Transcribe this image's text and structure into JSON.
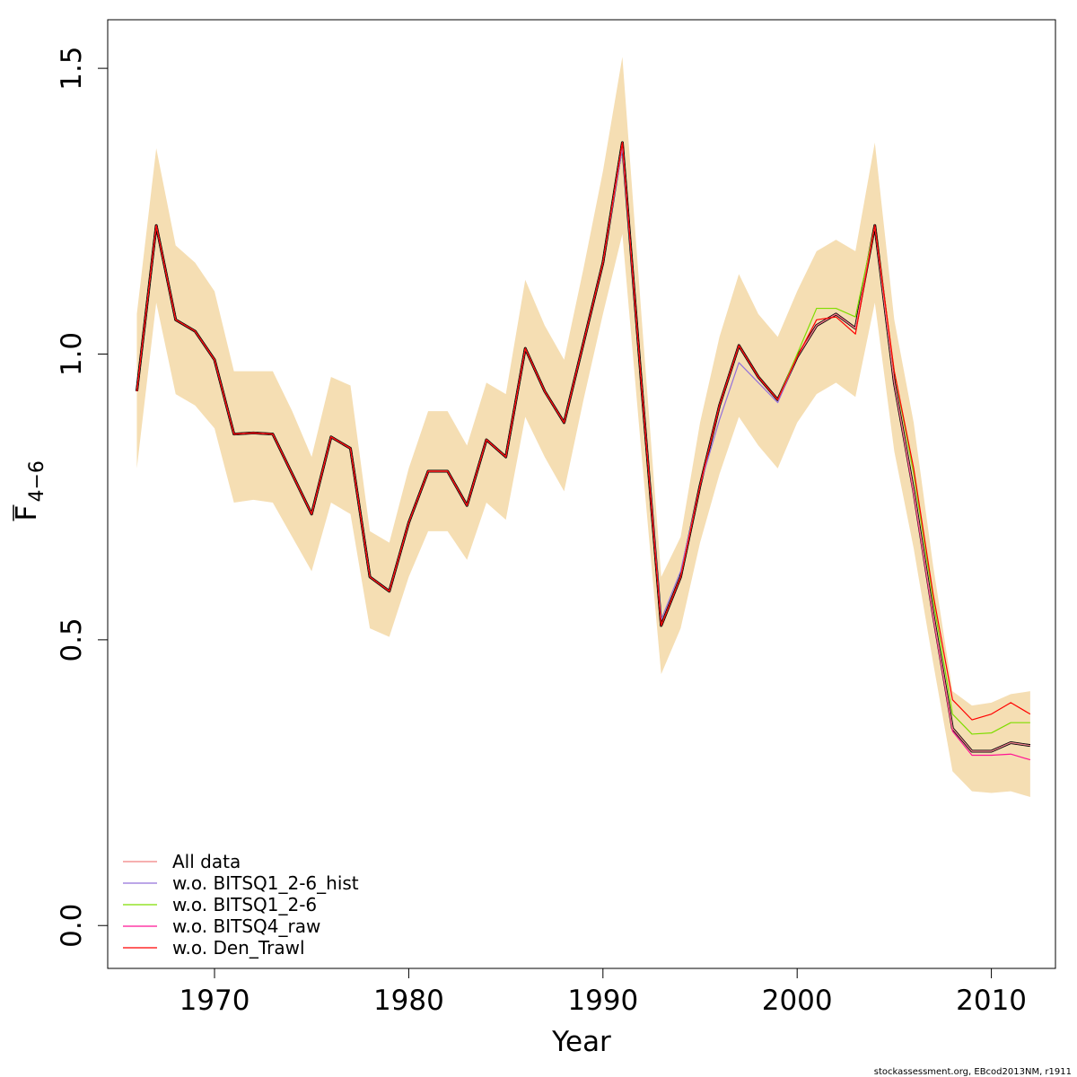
{
  "chart_data": {
    "type": "line",
    "xlabel": "Year",
    "ylabel": {
      "base": "F",
      "subscript": "4−6"
    },
    "xlim": [
      1964.5,
      2013.3
    ],
    "ylim": [
      -0.075,
      1.585
    ],
    "x_ticks": [
      1970,
      1980,
      1990,
      2000,
      2010
    ],
    "y_ticks": [
      0.0,
      0.5,
      1.0,
      1.5
    ],
    "y_tick_labels": [
      "0.0",
      "0.5",
      "1.0",
      "1.5"
    ],
    "grid": false,
    "legend_position": "bottom-left",
    "credit": "stockassessment.org, EBcod2013NM, r1911",
    "colors": {
      "band": "#F5DEB3",
      "main": "#000000",
      "all_data": "#F08080",
      "bitsq1_hist": "#9370DB",
      "bitsq1": "#7FDD00",
      "bitsq4": "#FF1493",
      "den_trawl": "#FF0000"
    },
    "years": [
      1966,
      1967,
      1968,
      1969,
      1970,
      1971,
      1972,
      1973,
      1974,
      1975,
      1976,
      1977,
      1978,
      1979,
      1980,
      1981,
      1982,
      1983,
      1984,
      1985,
      1986,
      1987,
      1988,
      1989,
      1990,
      1991,
      1992,
      1993,
      1994,
      1995,
      1996,
      1997,
      1998,
      1999,
      2000,
      2001,
      2002,
      2003,
      2004,
      2005,
      2006,
      2007,
      2008,
      2009,
      2010,
      2011,
      2012
    ],
    "band_upper": [
      1.07,
      1.36,
      1.19,
      1.16,
      1.11,
      0.97,
      0.97,
      0.97,
      0.9,
      0.82,
      0.96,
      0.945,
      0.69,
      0.67,
      0.8,
      0.9,
      0.9,
      0.84,
      0.95,
      0.93,
      1.13,
      1.05,
      0.99,
      1.15,
      1.32,
      1.52,
      1.06,
      0.61,
      0.68,
      0.88,
      1.03,
      1.14,
      1.07,
      1.03,
      1.11,
      1.18,
      1.2,
      1.18,
      1.37,
      1.06,
      0.88,
      0.63,
      0.41,
      0.385,
      0.39,
      0.405,
      0.41
    ],
    "band_lower": [
      0.8,
      1.09,
      0.93,
      0.91,
      0.87,
      0.74,
      0.745,
      0.74,
      0.68,
      0.62,
      0.74,
      0.72,
      0.52,
      0.505,
      0.61,
      0.69,
      0.69,
      0.64,
      0.74,
      0.71,
      0.89,
      0.82,
      0.76,
      0.92,
      1.07,
      1.21,
      0.82,
      0.44,
      0.52,
      0.67,
      0.79,
      0.89,
      0.84,
      0.8,
      0.88,
      0.93,
      0.95,
      0.925,
      1.09,
      0.83,
      0.66,
      0.46,
      0.27,
      0.235,
      0.232,
      0.235,
      0.225
    ],
    "main_line": {
      "values": [
        0.935,
        1.225,
        1.06,
        1.04,
        0.99,
        0.86,
        0.862,
        0.86,
        0.79,
        0.72,
        0.855,
        0.835,
        0.61,
        0.585,
        0.705,
        0.795,
        0.795,
        0.735,
        0.85,
        0.82,
        1.01,
        0.935,
        0.88,
        1.02,
        1.16,
        1.37,
        0.94,
        0.525,
        0.61,
        0.77,
        0.91,
        1.015,
        0.96,
        0.92,
        0.995,
        1.05,
        1.07,
        1.045,
        1.225,
        0.95,
        0.76,
        0.545,
        0.345,
        0.305,
        0.305,
        0.32,
        0.315
      ]
    },
    "series": [
      {
        "name": "All data",
        "color_key": "all_data",
        "values": [
          0.935,
          1.225,
          1.06,
          1.04,
          0.99,
          0.86,
          0.862,
          0.86,
          0.79,
          0.72,
          0.855,
          0.835,
          0.61,
          0.585,
          0.705,
          0.795,
          0.795,
          0.735,
          0.85,
          0.82,
          1.01,
          0.935,
          0.88,
          1.02,
          1.16,
          1.37,
          0.94,
          0.525,
          0.61,
          0.77,
          0.91,
          1.015,
          0.96,
          0.92,
          0.995,
          1.05,
          1.07,
          1.045,
          1.225,
          0.95,
          0.76,
          0.545,
          0.345,
          0.305,
          0.305,
          0.32,
          0.315
        ]
      },
      {
        "name": "w.o. BITSQ1_2-6_hist",
        "color_key": "bitsq1_hist",
        "values": [
          0.935,
          1.225,
          1.06,
          1.04,
          0.99,
          0.86,
          0.862,
          0.86,
          0.79,
          0.72,
          0.855,
          0.835,
          0.61,
          0.585,
          0.705,
          0.795,
          0.795,
          0.735,
          0.85,
          0.82,
          1.01,
          0.935,
          0.88,
          1.02,
          1.16,
          1.36,
          0.94,
          0.535,
          0.62,
          0.77,
          0.885,
          0.985,
          0.95,
          0.915,
          0.995,
          1.05,
          1.07,
          1.045,
          1.225,
          0.95,
          0.76,
          0.545,
          0.345,
          0.305,
          0.305,
          0.32,
          0.315
        ]
      },
      {
        "name": "w.o. BITSQ1_2-6",
        "color_key": "bitsq1",
        "values": [
          0.935,
          1.225,
          1.06,
          1.04,
          0.99,
          0.86,
          0.862,
          0.86,
          0.79,
          0.72,
          0.855,
          0.835,
          0.61,
          0.585,
          0.705,
          0.795,
          0.795,
          0.735,
          0.85,
          0.82,
          1.01,
          0.935,
          0.88,
          1.02,
          1.16,
          1.37,
          0.94,
          0.525,
          0.61,
          0.77,
          0.91,
          1.015,
          0.96,
          0.92,
          1.0,
          1.08,
          1.08,
          1.065,
          1.225,
          0.97,
          0.79,
          0.57,
          0.37,
          0.335,
          0.337,
          0.355,
          0.355
        ]
      },
      {
        "name": "w.o. BITSQ4_raw",
        "color_key": "bitsq4",
        "values": [
          0.935,
          1.225,
          1.06,
          1.04,
          0.99,
          0.86,
          0.862,
          0.86,
          0.79,
          0.72,
          0.855,
          0.835,
          0.61,
          0.585,
          0.705,
          0.795,
          0.795,
          0.735,
          0.85,
          0.82,
          1.01,
          0.935,
          0.88,
          1.02,
          1.16,
          1.37,
          0.94,
          0.525,
          0.61,
          0.77,
          0.91,
          1.015,
          0.96,
          0.92,
          0.995,
          1.05,
          1.07,
          1.045,
          1.225,
          0.95,
          0.755,
          0.54,
          0.34,
          0.298,
          0.298,
          0.3,
          0.29
        ]
      },
      {
        "name": "w.o. Den_Trawl",
        "color_key": "den_trawl",
        "values": [
          0.935,
          1.225,
          1.06,
          1.04,
          0.99,
          0.86,
          0.862,
          0.86,
          0.79,
          0.72,
          0.855,
          0.835,
          0.61,
          0.585,
          0.705,
          0.795,
          0.795,
          0.735,
          0.85,
          0.82,
          1.01,
          0.935,
          0.88,
          1.02,
          1.16,
          1.37,
          0.94,
          0.525,
          0.61,
          0.77,
          0.91,
          1.015,
          0.96,
          0.92,
          0.995,
          1.06,
          1.065,
          1.035,
          1.225,
          0.97,
          0.8,
          0.58,
          0.395,
          0.36,
          0.37,
          0.39,
          0.37
        ]
      }
    ]
  }
}
